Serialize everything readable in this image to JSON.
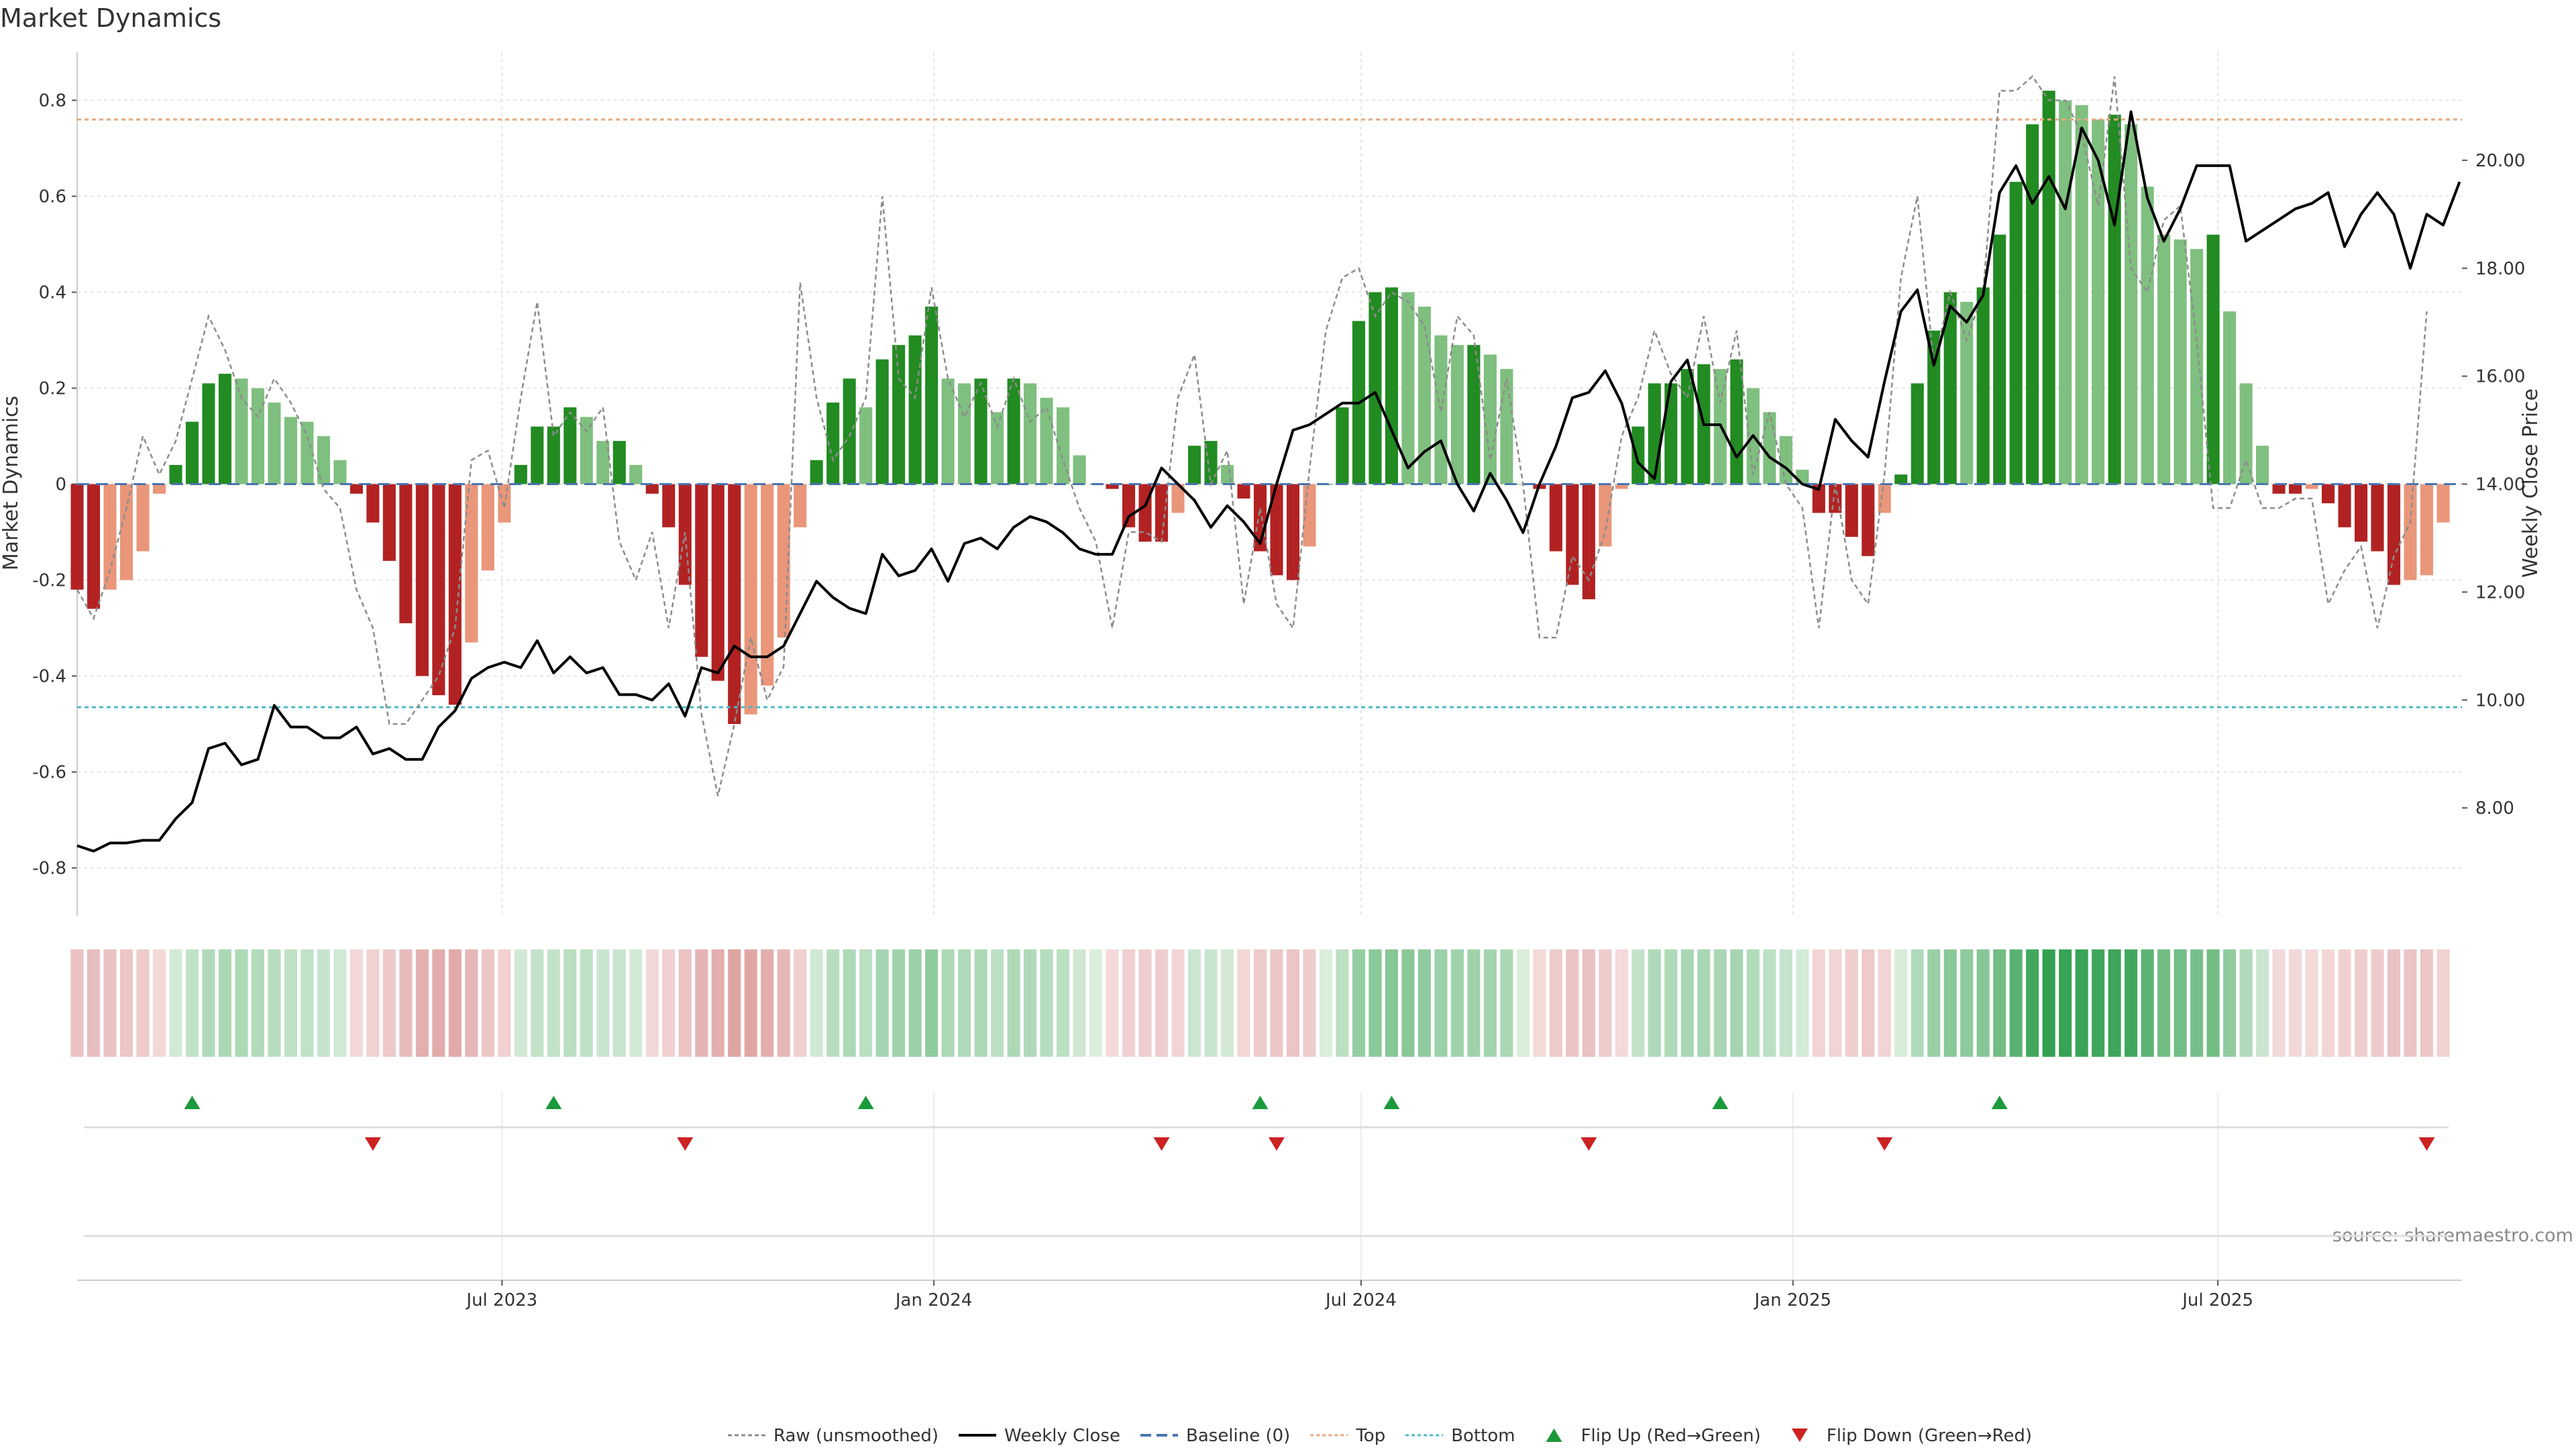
{
  "chart_data": {
    "type": "bar",
    "title": "Market Dynamics",
    "ylabel_left": "Market Dynamics",
    "ylabel_right": "Weekly Close Price",
    "source": "source: sharemaestro.com",
    "ylim_left": [
      -0.9,
      0.9
    ],
    "yticks_left": [
      {
        "v": 0.8,
        "label": "0.8"
      },
      {
        "v": 0.6,
        "label": "0.6"
      },
      {
        "v": 0.4,
        "label": "0.4"
      },
      {
        "v": 0.2,
        "label": "0.2"
      },
      {
        "v": 0,
        "label": "0"
      },
      {
        "v": -0.2,
        "label": "-0.2"
      },
      {
        "v": -0.4,
        "label": "-0.4"
      },
      {
        "v": -0.6,
        "label": "-0.6"
      },
      {
        "v": -0.8,
        "label": "-0.8"
      }
    ],
    "ylim_right": [
      6.0,
      22.0
    ],
    "yticks_right": [
      {
        "v": 20,
        "label": "20.00"
      },
      {
        "v": 18,
        "label": "18.00"
      },
      {
        "v": 16,
        "label": "16.00"
      },
      {
        "v": 14,
        "label": "14.00"
      },
      {
        "v": 12,
        "label": "12.00"
      },
      {
        "v": 10,
        "label": "10.00"
      },
      {
        "v": 8,
        "label": "8.00"
      }
    ],
    "top_level": 0.76,
    "bottom_level": -0.465,
    "x_start": "2023-01-01",
    "x_end": "2025-10-13",
    "xticks": [
      {
        "date": "2023-07-01",
        "label": "Jul 2023"
      },
      {
        "date": "2024-01-01",
        "label": "Jan 2024"
      },
      {
        "date": "2024-07-01",
        "label": "Jul 2024"
      },
      {
        "date": "2025-01-01",
        "label": "Jan 2025"
      },
      {
        "date": "2025-07-01",
        "label": "Jul 2025"
      }
    ],
    "weeks_start": "2023-01-01",
    "smoothed": [
      -0.22,
      -0.26,
      -0.22,
      -0.2,
      -0.14,
      -0.02,
      0.04,
      0.13,
      0.21,
      0.23,
      0.22,
      0.2,
      0.17,
      0.14,
      0.13,
      0.1,
      0.05,
      -0.02,
      -0.08,
      -0.16,
      -0.29,
      -0.4,
      -0.44,
      -0.46,
      -0.33,
      -0.18,
      -0.08,
      0.04,
      0.12,
      0.12,
      0.16,
      0.14,
      0.09,
      0.09,
      0.04,
      -0.02,
      -0.09,
      -0.21,
      -0.36,
      -0.41,
      -0.5,
      -0.48,
      -0.42,
      -0.32,
      -0.09,
      0.05,
      0.17,
      0.22,
      0.16,
      0.26,
      0.29,
      0.31,
      0.37,
      0.22,
      0.21,
      0.22,
      0.15,
      0.22,
      0.21,
      0.18,
      0.16,
      0.06,
      0.0,
      -0.01,
      -0.09,
      -0.12,
      -0.12,
      -0.06,
      0.08,
      0.09,
      0.04,
      -0.03,
      -0.14,
      -0.19,
      -0.2,
      -0.13,
      0.0,
      0.16,
      0.34,
      0.4,
      0.41,
      0.4,
      0.37,
      0.31,
      0.29,
      0.29,
      0.27,
      0.24,
      0.0,
      -0.01,
      -0.14,
      -0.21,
      -0.24,
      -0.13,
      -0.01,
      0.12,
      0.21,
      0.21,
      0.24,
      0.25,
      0.24,
      0.26,
      0.2,
      0.15,
      0.1,
      0.03,
      -0.06,
      -0.06,
      -0.11,
      -0.15,
      -0.06,
      0.02,
      0.21,
      0.32,
      0.4,
      0.38,
      0.41,
      0.52,
      0.63,
      0.75,
      0.82,
      0.8,
      0.79,
      0.76,
      0.77,
      0.75,
      0.62,
      0.52,
      0.51,
      0.49,
      0.52,
      0.36,
      0.21,
      0.08,
      -0.02,
      -0.02,
      -0.01,
      -0.04,
      -0.09,
      -0.12,
      -0.14,
      -0.21,
      -0.2,
      -0.19,
      -0.08
    ],
    "raw": [
      -0.22,
      -0.28,
      -0.18,
      -0.05,
      0.1,
      0.02,
      0.09,
      0.22,
      0.35,
      0.28,
      0.18,
      0.14,
      0.22,
      0.17,
      0.1,
      -0.01,
      -0.05,
      -0.22,
      -0.3,
      -0.5,
      -0.5,
      -0.45,
      -0.4,
      -0.3,
      0.05,
      0.07,
      -0.05,
      0.18,
      0.38,
      0.1,
      0.15,
      0.11,
      0.16,
      -0.12,
      -0.2,
      -0.1,
      -0.3,
      -0.1,
      -0.48,
      -0.65,
      -0.5,
      -0.32,
      -0.45,
      -0.38,
      0.42,
      0.18,
      0.05,
      0.1,
      0.18,
      0.6,
      0.22,
      0.18,
      0.41,
      0.22,
      0.14,
      0.21,
      0.12,
      0.22,
      0.13,
      0.16,
      0.05,
      -0.05,
      -0.12,
      -0.3,
      -0.1,
      -0.1,
      -0.12,
      0.18,
      0.27,
      0.0,
      0.07,
      -0.25,
      -0.05,
      -0.25,
      -0.3,
      0.03,
      0.32,
      0.43,
      0.45,
      0.35,
      0.4,
      0.38,
      0.33,
      0.15,
      0.35,
      0.31,
      0.05,
      0.22,
      0.0,
      -0.32,
      -0.32,
      -0.15,
      -0.2,
      -0.1,
      0.1,
      0.18,
      0.32,
      0.23,
      0.18,
      0.35,
      0.17,
      0.32,
      0.02,
      0.15,
      0.0,
      -0.05,
      -0.3,
      0.0,
      -0.2,
      -0.25,
      0.02,
      0.43,
      0.6,
      0.25,
      0.4,
      0.3,
      0.4,
      0.82,
      0.82,
      0.85,
      0.8,
      0.8,
      0.73,
      0.58,
      0.85,
      0.45,
      0.4,
      0.55,
      0.58,
      0.3,
      -0.05,
      -0.05,
      0.05,
      -0.05,
      -0.05,
      -0.03,
      -0.03,
      -0.25,
      -0.18,
      -0.13,
      -0.3,
      -0.15,
      -0.08,
      0.36
    ],
    "close": [
      7.3,
      7.2,
      7.35,
      7.35,
      7.4,
      7.4,
      7.8,
      8.1,
      9.1,
      9.2,
      8.8,
      8.9,
      9.9,
      9.5,
      9.5,
      9.3,
      9.3,
      9.5,
      9.0,
      9.1,
      8.9,
      8.9,
      9.5,
      9.8,
      10.4,
      10.6,
      10.7,
      10.6,
      11.1,
      10.5,
      10.8,
      10.5,
      10.6,
      10.1,
      10.1,
      10.0,
      10.3,
      9.7,
      10.6,
      10.5,
      11.0,
      10.8,
      10.8,
      11.0,
      11.6,
      12.2,
      11.9,
      11.7,
      11.6,
      12.7,
      12.3,
      12.4,
      12.8,
      12.2,
      12.9,
      13.0,
      12.8,
      13.2,
      13.4,
      13.3,
      13.1,
      12.8,
      12.7,
      12.7,
      13.4,
      13.6,
      14.3,
      14.0,
      13.7,
      13.2,
      13.6,
      13.3,
      12.9,
      14.0,
      15.0,
      15.1,
      15.3,
      15.5,
      15.5,
      15.7,
      15.0,
      14.3,
      14.6,
      14.8,
      14.0,
      13.5,
      14.2,
      13.7,
      13.1,
      14.0,
      14.7,
      15.6,
      15.7,
      16.1,
      15.5,
      14.4,
      14.1,
      15.9,
      16.3,
      15.1,
      15.1,
      14.5,
      14.9,
      14.5,
      14.3,
      14.0,
      13.9,
      15.2,
      14.8,
      14.5,
      15.9,
      17.2,
      17.6,
      16.2,
      17.3,
      17.0,
      17.5,
      19.4,
      19.9,
      19.2,
      19.7,
      19.1,
      20.6,
      20.0,
      18.8,
      20.9,
      19.3,
      18.5,
      19.1,
      19.9,
      19.9,
      19.9,
      18.5,
      18.7,
      18.9,
      19.1,
      19.2,
      19.4,
      18.4,
      19.0,
      19.4,
      19.0,
      18.0,
      19.0,
      18.8,
      19.6
    ],
    "flip_up_weeks": [
      7,
      29,
      48,
      72,
      80,
      100,
      117
    ],
    "flip_down_weeks": [
      18,
      37,
      66,
      73,
      92,
      110,
      143
    ],
    "legend": [
      {
        "key": "raw",
        "label": "Raw (unsmoothed)"
      },
      {
        "key": "close",
        "label": "Weekly Close"
      },
      {
        "key": "baseline",
        "label": "Baseline (0)"
      },
      {
        "key": "top",
        "label": "Top"
      },
      {
        "key": "bottom",
        "label": "Bottom"
      },
      {
        "key": "flipup",
        "label": "Flip Up (Red→Green)"
      },
      {
        "key": "flipdown",
        "label": "Flip Down (Green→Red)"
      }
    ],
    "legend_position": "bottom-center",
    "colors": {
      "strong_green": "#228b22",
      "light_green": "#7fbf7f",
      "strong_red": "#b22222",
      "light_red": "#e9967a",
      "raw_line": "#8c8c8c",
      "close_line": "#000000",
      "baseline": "#4a74b0",
      "top_line": "#e8a87c",
      "bottom_line": "#4ab8c8",
      "flip_up": "#1a9a3a",
      "flip_down": "#cc2222",
      "grid": "#e6e6e6",
      "text": "#333333"
    }
  }
}
